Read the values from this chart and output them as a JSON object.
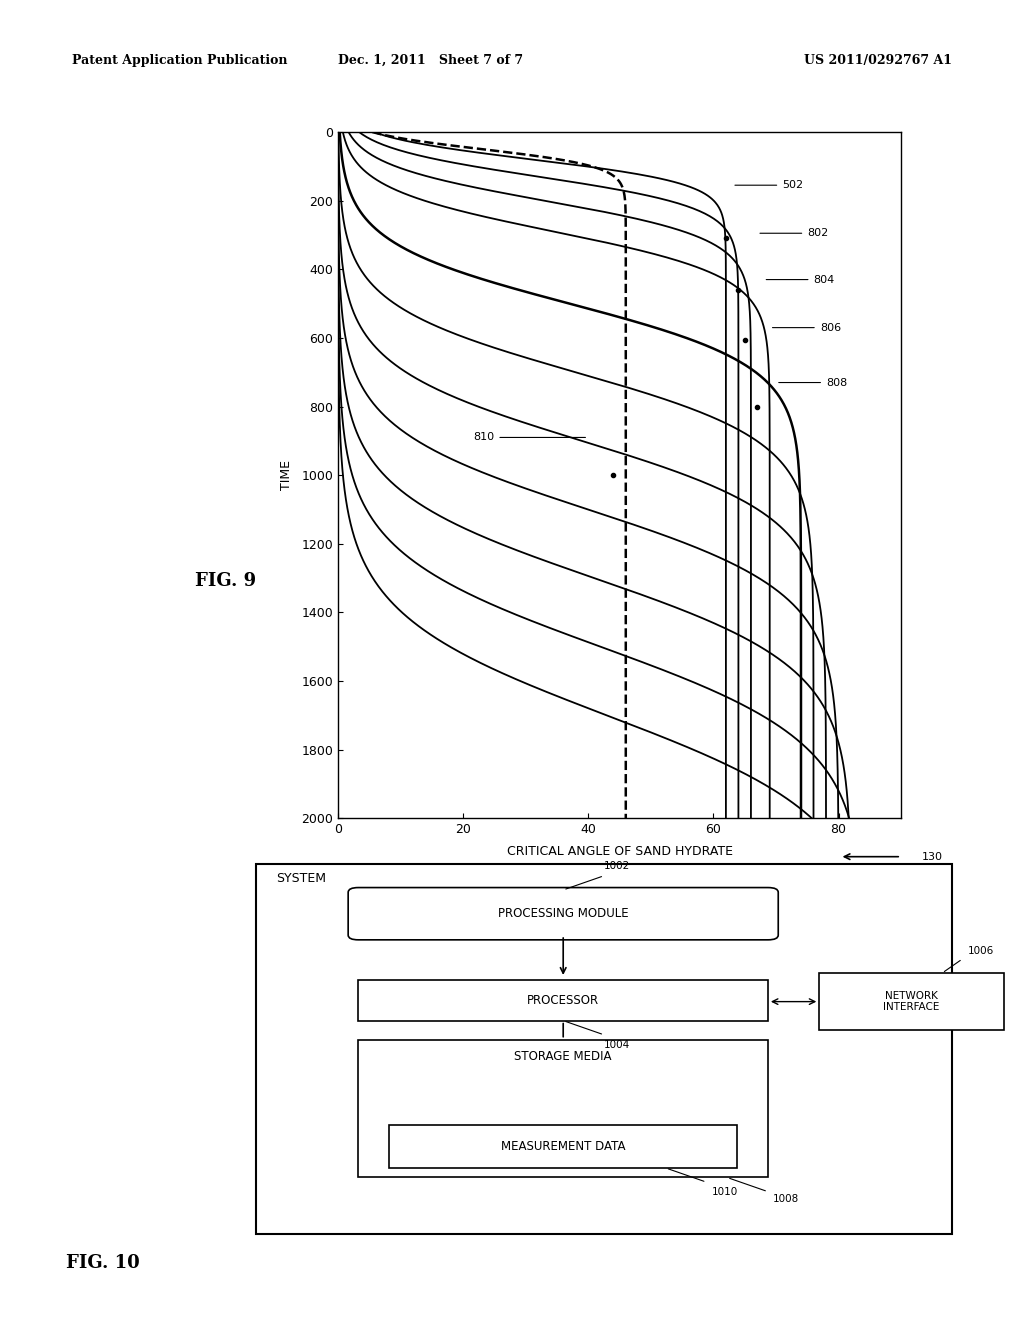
{
  "header_left": "Patent Application Publication",
  "header_center": "Dec. 1, 2011   Sheet 7 of 7",
  "header_right": "US 2011/0292767 A1",
  "fig9_xlabel": "CRITICAL ANGLE OF SAND HYDRATE",
  "fig9_ylabel": "TIME",
  "fig9_label": "FIG. 9",
  "fig9_xlim": [
    0,
    90
  ],
  "fig9_ylim": [
    2000,
    0
  ],
  "fig9_xticks": [
    0,
    20,
    40,
    60,
    80
  ],
  "fig9_yticks": [
    0,
    200,
    400,
    600,
    800,
    1000,
    1200,
    1400,
    1600,
    1800,
    2000
  ],
  "curve_labels": [
    "502",
    "802",
    "804",
    "806",
    "808",
    "810"
  ],
  "fig10_label": "FIG. 10",
  "system_label": "SYSTEM",
  "arrow_130": "130",
  "box_1002": "PROCESSING MODULE",
  "label_1002": "1002",
  "box_1004": "PROCESSOR",
  "label_1004": "1004",
  "box_1006": "NETWORK\nINTERFACE",
  "label_1006": "1006",
  "box_1008": "STORAGE MEDIA",
  "label_1008": "1008",
  "box_1010": "MEASUREMENT DATA",
  "label_1010": "1010",
  "bg_color": "#ffffff",
  "line_color": "#000000"
}
